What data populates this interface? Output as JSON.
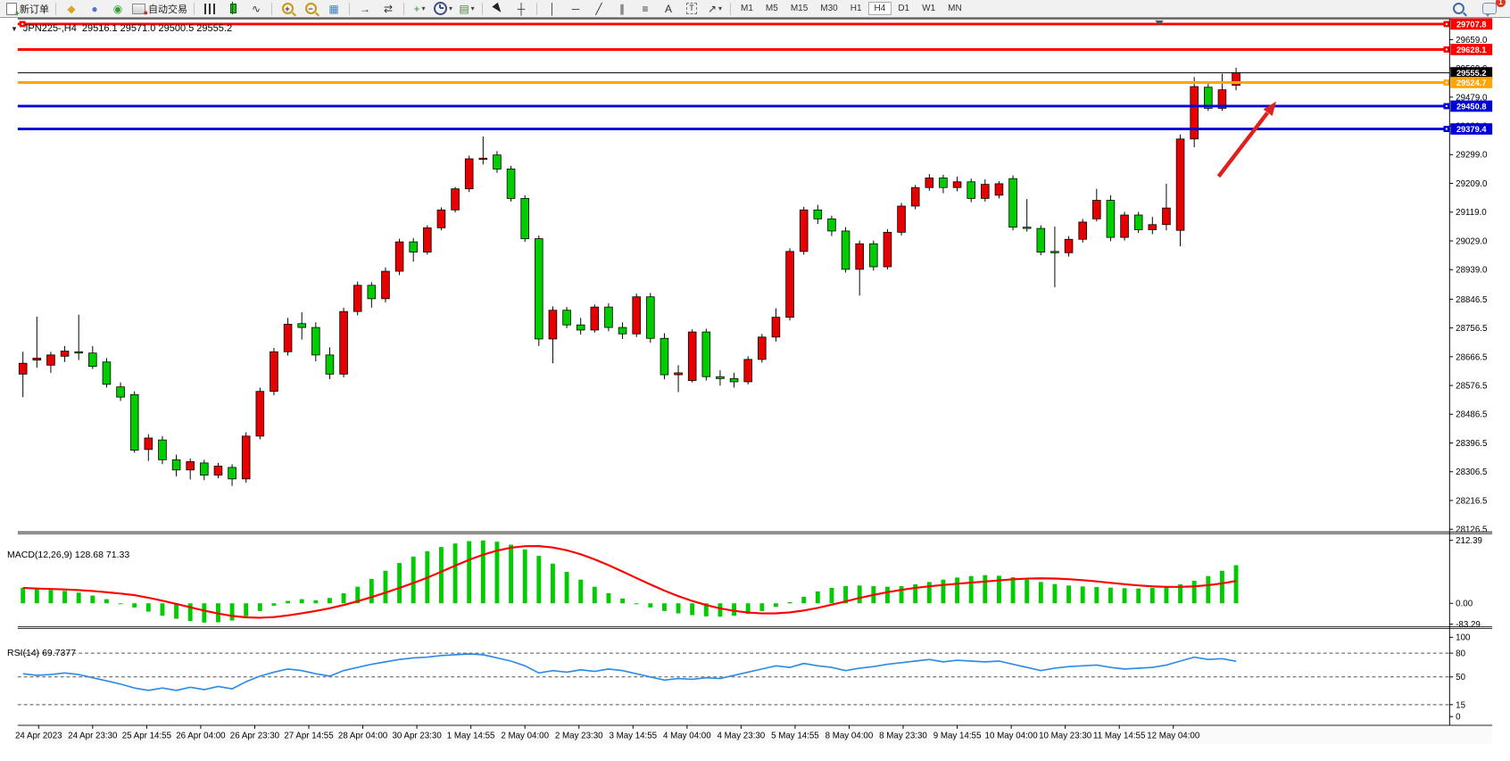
{
  "toolbar": {
    "caret_glyph": "▾",
    "items": [
      {
        "name": "new-order-button",
        "icon": "doc",
        "badge": "+",
        "badgeColor": "#1fa31f",
        "label": "新订单"
      },
      {
        "name": "separator"
      },
      {
        "name": "metaeditor-icon",
        "icon": "glyph",
        "glyph": "◆",
        "color": "#d9a520"
      },
      {
        "name": "publish-icon",
        "icon": "glyph",
        "glyph": "●",
        "color": "#4a78c8"
      },
      {
        "name": "signals-icon",
        "icon": "glyph",
        "glyph": "◉",
        "color": "#2f9e2f"
      },
      {
        "name": "autotrading-button",
        "icon": "autotrade",
        "badge": "●",
        "badgeColor": "#d22020",
        "label": "自动交易"
      },
      {
        "name": "separator"
      },
      {
        "name": "bar-chart-button",
        "icon": "bars"
      },
      {
        "name": "candlestick-button",
        "icon": "candle"
      },
      {
        "name": "line-chart-button",
        "icon": "glyph",
        "glyph": "∿",
        "color": "#333333"
      },
      {
        "name": "separator"
      },
      {
        "name": "zoom-in-button",
        "icon": "zoom",
        "glyph": "+"
      },
      {
        "name": "zoom-out-button",
        "icon": "zoom",
        "glyph": "−"
      },
      {
        "name": "tile-windows-button",
        "icon": "glyph",
        "glyph": "▦",
        "color": "#3f7fbf"
      },
      {
        "name": "separator"
      },
      {
        "name": "auto-scroll-button",
        "icon": "glyph",
        "glyph": "→",
        "color": "#333333"
      },
      {
        "name": "chart-shift-button",
        "icon": "glyph",
        "glyph": "⇄",
        "color": "#333333"
      },
      {
        "name": "separator"
      },
      {
        "name": "indicators-button",
        "icon": "glyph",
        "glyph": "+",
        "color": "#1fa31f",
        "caret": true
      },
      {
        "name": "periods-button",
        "icon": "clock",
        "caret": true
      },
      {
        "name": "templates-button",
        "icon": "glyph",
        "glyph": "▤",
        "color": "#4a7f3f",
        "caret": true
      },
      {
        "name": "separator"
      },
      {
        "name": "cursor-button",
        "icon": "cursor"
      },
      {
        "name": "crosshair-button",
        "icon": "glyph",
        "glyph": "┼",
        "color": "#333333"
      },
      {
        "name": "separator"
      },
      {
        "name": "vertical-line-button",
        "icon": "glyph",
        "glyph": "│",
        "color": "#333333"
      },
      {
        "name": "horizontal-line-button",
        "icon": "glyph",
        "glyph": "─",
        "color": "#333333"
      },
      {
        "name": "trendline-button",
        "icon": "glyph",
        "glyph": "╱",
        "color": "#333333"
      },
      {
        "name": "equidistant-channel-button",
        "icon": "glyph",
        "glyph": "∥",
        "color": "#333333"
      },
      {
        "name": "fibonacci-button",
        "icon": "glyph",
        "glyph": "≡",
        "color": "#333333"
      },
      {
        "name": "text-button",
        "icon": "glyph",
        "glyph": "A",
        "color": "#333333"
      },
      {
        "name": "text-label-button",
        "icon": "tbox",
        "glyph": "T"
      },
      {
        "name": "arrows-button",
        "icon": "glyph",
        "glyph": "↗",
        "color": "#333333",
        "caret": true
      },
      {
        "name": "separator"
      }
    ],
    "timeframes": {
      "items": [
        "M1",
        "M5",
        "M15",
        "M30",
        "H1",
        "H4",
        "D1",
        "W1",
        "MN"
      ],
      "active": "H4"
    },
    "notification": {
      "count": "1"
    }
  },
  "chart": {
    "title": {
      "collapse_glyph": "▼",
      "symbol": "JPN225-,H4",
      "ohlc": "29516.1 29571.0 29500.5 29555.2"
    },
    "macd_label": "MACD(12,26,9) 128.68 71.33",
    "rsi_label": "RSI(14) 69.7377",
    "hlines": [
      {
        "price": 29707.8,
        "label": "29707.8",
        "color": "#fe0000",
        "left_handle": true
      },
      {
        "price": 29628.1,
        "label": "29628.1",
        "color": "#fe0000",
        "left_handle": false
      },
      {
        "price": 29524.7,
        "label": "29524.7",
        "color": "#ffa500",
        "left_handle": false
      },
      {
        "price": 29450.8,
        "label": "29450.8",
        "color": "#0000d8",
        "left_handle": false
      },
      {
        "price": 29379.4,
        "label": "29379.4",
        "color": "#0000d8",
        "left_handle": false
      }
    ],
    "current_price": {
      "value": 29555.2,
      "label": "29555.2",
      "color": "#000000"
    }
  },
  "chart_data": {
    "type": "candlestick",
    "symbol": "JPN225-",
    "period": "H4",
    "ohlc_current": {
      "open": 29516.1,
      "high": 29571.0,
      "low": 29500.5,
      "close": 29555.2
    },
    "price_axis_ticks": [
      "29659.0",
      "29569.0",
      "29479.0",
      "29389.0",
      "29299.0",
      "29209.0",
      "29119.0",
      "29029.0",
      "28939.0",
      "28846.5",
      "28756.5",
      "28666.5",
      "28576.5",
      "28486.5",
      "28396.5",
      "28306.5",
      "28216.5",
      "28126.5"
    ],
    "time_axis_ticks": [
      "24 Apr 2023",
      "24 Apr 23:30",
      "25 Apr 14:55",
      "26 Apr 04:00",
      "26 Apr 23:30",
      "27 Apr 14:55",
      "28 Apr 04:00",
      "30 Apr 23:30",
      "1 May 14:55",
      "2 May 04:00",
      "2 May 23:30",
      "3 May 14:55",
      "4 May 04:00",
      "4 May 23:30",
      "5 May 14:55",
      "8 May 04:00",
      "8 May 23:30",
      "9 May 14:55",
      "10 May 04:00",
      "10 May 23:30",
      "11 May 14:55",
      "12 May 04:00"
    ],
    "candles": [
      [
        28612,
        28682,
        28540,
        28646
      ],
      [
        28656,
        28792,
        28632,
        28662
      ],
      [
        28640,
        28682,
        28616,
        28672
      ],
      [
        28668,
        28700,
        28650,
        28684
      ],
      [
        28682,
        28798,
        28656,
        28678
      ],
      [
        28678,
        28700,
        28628,
        28636
      ],
      [
        28650,
        28662,
        28570,
        28580
      ],
      [
        28572,
        28586,
        28528,
        28540
      ],
      [
        28548,
        28558,
        28366,
        28374
      ],
      [
        28376,
        28424,
        28340,
        28412
      ],
      [
        28406,
        28418,
        28330,
        28344
      ],
      [
        28344,
        28360,
        28292,
        28312
      ],
      [
        28312,
        28348,
        28282,
        28338
      ],
      [
        28334,
        28344,
        28280,
        28296
      ],
      [
        28296,
        28334,
        28286,
        28324
      ],
      [
        28320,
        28330,
        28262,
        28284
      ],
      [
        28284,
        28430,
        28272,
        28418
      ],
      [
        28418,
        28570,
        28408,
        28558
      ],
      [
        28558,
        28694,
        28546,
        28682
      ],
      [
        28682,
        28788,
        28670,
        28768
      ],
      [
        28770,
        28806,
        28720,
        28758
      ],
      [
        28758,
        28774,
        28652,
        28672
      ],
      [
        28672,
        28696,
        28596,
        28612
      ],
      [
        28612,
        28820,
        28602,
        28808
      ],
      [
        28808,
        28902,
        28796,
        28890
      ],
      [
        28890,
        28900,
        28820,
        28848
      ],
      [
        28848,
        28946,
        28836,
        28934
      ],
      [
        28934,
        29036,
        28922,
        29026
      ],
      [
        29026,
        29038,
        28964,
        28994
      ],
      [
        28994,
        29078,
        28986,
        29070
      ],
      [
        29070,
        29134,
        29062,
        29126
      ],
      [
        29126,
        29198,
        29118,
        29192
      ],
      [
        29192,
        29296,
        29182,
        29286
      ],
      [
        29286,
        29356,
        29268,
        29288
      ],
      [
        29298,
        29310,
        29242,
        29254
      ],
      [
        29254,
        29264,
        29152,
        29162
      ],
      [
        29162,
        29172,
        29026,
        29036
      ],
      [
        29036,
        29046,
        28700,
        28722
      ],
      [
        28722,
        28824,
        28646,
        28812
      ],
      [
        28812,
        28822,
        28756,
        28766
      ],
      [
        28766,
        28788,
        28736,
        28750
      ],
      [
        28750,
        28830,
        28742,
        28822
      ],
      [
        28822,
        28834,
        28746,
        28758
      ],
      [
        28758,
        28774,
        28722,
        28738
      ],
      [
        28738,
        28864,
        28728,
        28854
      ],
      [
        28854,
        28866,
        28710,
        28724
      ],
      [
        28724,
        28740,
        28596,
        28610
      ],
      [
        28610,
        28640,
        28556,
        28616
      ],
      [
        28592,
        28752,
        28586,
        28744
      ],
      [
        28744,
        28754,
        28592,
        28604
      ],
      [
        28604,
        28624,
        28576,
        28598
      ],
      [
        28598,
        28616,
        28570,
        28588
      ],
      [
        28588,
        28668,
        28580,
        28658
      ],
      [
        28658,
        28738,
        28648,
        28728
      ],
      [
        28728,
        28818,
        28714,
        28790
      ],
      [
        28790,
        29006,
        28780,
        28996
      ],
      [
        28996,
        29136,
        28986,
        29126
      ],
      [
        29126,
        29142,
        29082,
        29098
      ],
      [
        29098,
        29108,
        29044,
        29060
      ],
      [
        29060,
        29072,
        28930,
        28940
      ],
      [
        28940,
        29030,
        28858,
        29020
      ],
      [
        29020,
        29030,
        28936,
        28948
      ],
      [
        28948,
        29066,
        28940,
        29056
      ],
      [
        29056,
        29148,
        29046,
        29138
      ],
      [
        29138,
        29204,
        29128,
        29196
      ],
      [
        29196,
        29238,
        29186,
        29226
      ],
      [
        29226,
        29236,
        29178,
        29196
      ],
      [
        29196,
        29230,
        29184,
        29214
      ],
      [
        29214,
        29224,
        29150,
        29162
      ],
      [
        29162,
        29222,
        29152,
        29206
      ],
      [
        29172,
        29216,
        29162,
        29208
      ],
      [
        29224,
        29234,
        29062,
        29072
      ],
      [
        29072,
        29160,
        29058,
        29068
      ],
      [
        29068,
        29078,
        28984,
        28994
      ],
      [
        28996,
        29074,
        28884,
        28992
      ],
      [
        28992,
        29044,
        28980,
        29034
      ],
      [
        29034,
        29098,
        29024,
        29088
      ],
      [
        29098,
        29192,
        29090,
        29156
      ],
      [
        29156,
        29172,
        29028,
        29040
      ],
      [
        29040,
        29120,
        29030,
        29110
      ],
      [
        29110,
        29120,
        29054,
        29064
      ],
      [
        29064,
        29104,
        29050,
        29080
      ],
      [
        29080,
        29208,
        29062,
        29132
      ],
      [
        29062,
        29362,
        29012,
        29348
      ],
      [
        29348,
        29542,
        29322,
        29512
      ],
      [
        29510,
        29524,
        29436,
        29444
      ],
      [
        29444,
        29552,
        29436,
        29502
      ],
      [
        29516.1,
        29571,
        29500.5,
        29555.2
      ]
    ],
    "macd": {
      "label": "MACD(12,26,9)",
      "value_main": 128.68,
      "value_signal": 71.33,
      "axis_ticks": [
        "212.39",
        "0.00",
        "-83.29"
      ],
      "histogram": [
        52,
        48,
        45,
        42,
        36,
        26,
        14,
        0,
        -14,
        -28,
        -42,
        -52,
        -60,
        -65,
        -64,
        -58,
        -44,
        -26,
        -8,
        8,
        14,
        10,
        18,
        34,
        56,
        82,
        110,
        136,
        158,
        176,
        190,
        202,
        210,
        212,
        208,
        198,
        182,
        160,
        134,
        106,
        80,
        56,
        34,
        16,
        0,
        -14,
        -26,
        -34,
        -40,
        -44,
        -45,
        -42,
        -36,
        -26,
        -12,
        4,
        22,
        40,
        52,
        58,
        60,
        58,
        56,
        58,
        64,
        72,
        80,
        87,
        92,
        95,
        93,
        88,
        80,
        72,
        65,
        60,
        57,
        55,
        53,
        51,
        50,
        52,
        57,
        64,
        76,
        92,
        110,
        128.68
      ]
    },
    "rsi": {
      "label": "RSI(14)",
      "value": 69.7377,
      "axis_ticks": [
        "100",
        "80",
        "50",
        "15",
        "0"
      ],
      "levels": [
        80,
        50,
        15
      ],
      "values": [
        54,
        52,
        53,
        55,
        53,
        49,
        45,
        41,
        36,
        33,
        36,
        33,
        37,
        34,
        38,
        35,
        44,
        51,
        56,
        60,
        58,
        54,
        51,
        58,
        62,
        66,
        69,
        72,
        74,
        75,
        77,
        78,
        79,
        78,
        74,
        70,
        64,
        55,
        58,
        56,
        59,
        57,
        60,
        58,
        54,
        50,
        46,
        48,
        47,
        49,
        48,
        52,
        56,
        60,
        64,
        62,
        67,
        64,
        62,
        58,
        61,
        63,
        66,
        68,
        70,
        72,
        69,
        71,
        70,
        69,
        70,
        66,
        62,
        58,
        61,
        63,
        64,
        65,
        62,
        60,
        61,
        62,
        65,
        70,
        75,
        72,
        73,
        69.7377
      ]
    },
    "colors": {
      "up": "#e60000",
      "down": "#00cc00",
      "wick": "#000000",
      "macd_hist": "#00cc00",
      "macd_signal": "#ff0000",
      "rsi_line": "#2e8be6",
      "annotation_arrow": "#e02020"
    },
    "annotations": [
      {
        "type": "arrow",
        "direction": "up-right",
        "color": "#e02020"
      }
    ]
  }
}
